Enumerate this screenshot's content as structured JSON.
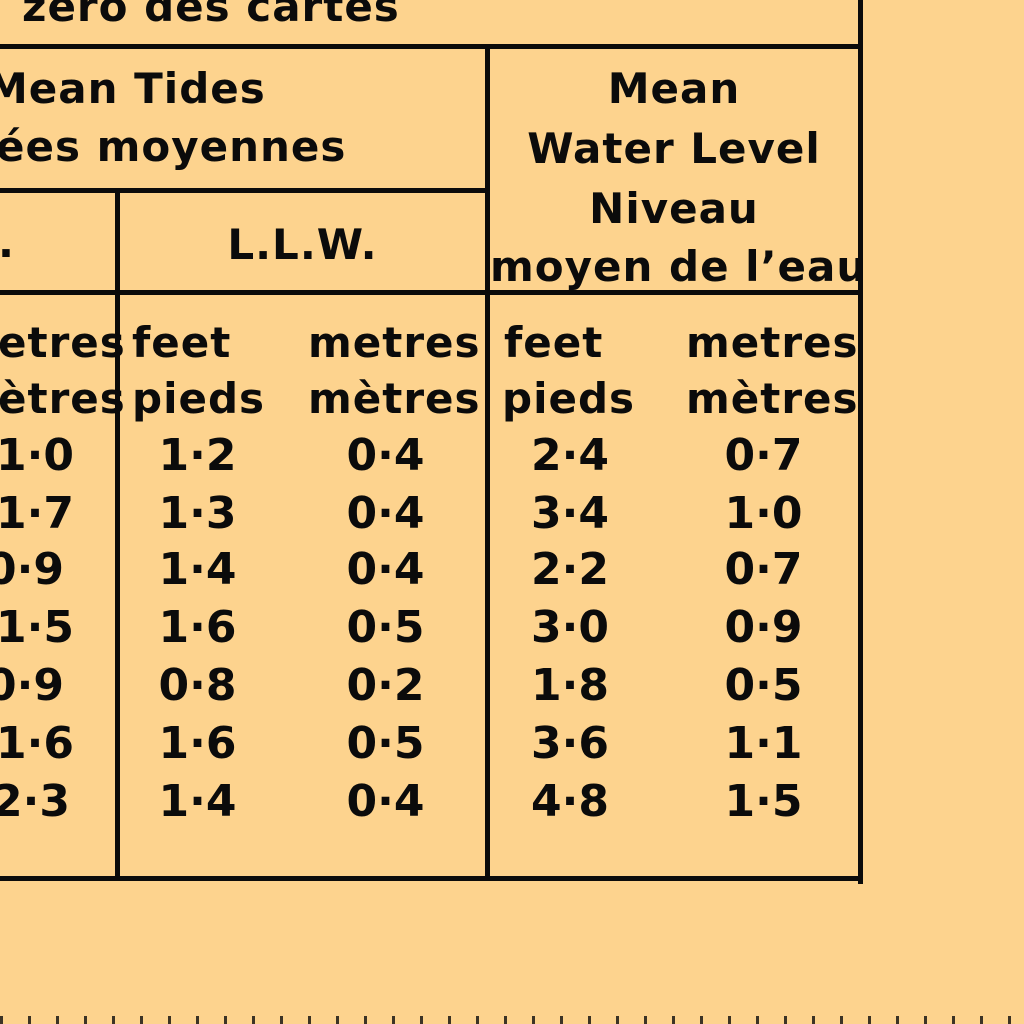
{
  "header": {
    "chart_datum_fragment": "zero des cartes",
    "mean_tides_en": "Mean Tides",
    "mean_tides_fr": "ées moyennes",
    "hhw_fragment": ".",
    "llw": "L.L.W.",
    "mwl_line1": "Mean",
    "mwl_line2": "Water Level",
    "mwl_line3": "Niveau",
    "mwl_line4": "moyen de l’eau"
  },
  "units": {
    "metres_en_fragment": "etres",
    "metres_fr_fragment": "ètres",
    "feet_en": "feet",
    "feet_fr": "pieds",
    "metres_en": "metres",
    "metres_fr": "mètres"
  },
  "rows": [
    {
      "hhw_metres": "1·0",
      "llw_feet": "1·2",
      "llw_metres": "0·4",
      "mwl_feet": "2·4",
      "mwl_metres": "0·7"
    },
    {
      "hhw_metres": "1·7",
      "llw_feet": "1·3",
      "llw_metres": "0·4",
      "mwl_feet": "3·4",
      "mwl_metres": "1·0"
    },
    {
      "hhw_metres": "0·9",
      "llw_feet": "1·4",
      "llw_metres": "0·4",
      "mwl_feet": "2·2",
      "mwl_metres": "0·7"
    },
    {
      "hhw_metres": "1·5",
      "llw_feet": "1·6",
      "llw_metres": "0·5",
      "mwl_feet": "3·0",
      "mwl_metres": "0·9"
    },
    {
      "hhw_metres": "0·9",
      "llw_feet": "0·8",
      "llw_metres": "0·2",
      "mwl_feet": "1·8",
      "mwl_metres": "0·5"
    },
    {
      "hhw_metres": "1·6",
      "llw_feet": "1·6",
      "llw_metres": "0·5",
      "mwl_feet": "3·6",
      "mwl_metres": "1·1"
    },
    {
      "hhw_metres": "2·3",
      "llw_feet": "1·4",
      "llw_metres": "0·4",
      "mwl_feet": "4·8",
      "mwl_metres": "1·5"
    }
  ]
}
